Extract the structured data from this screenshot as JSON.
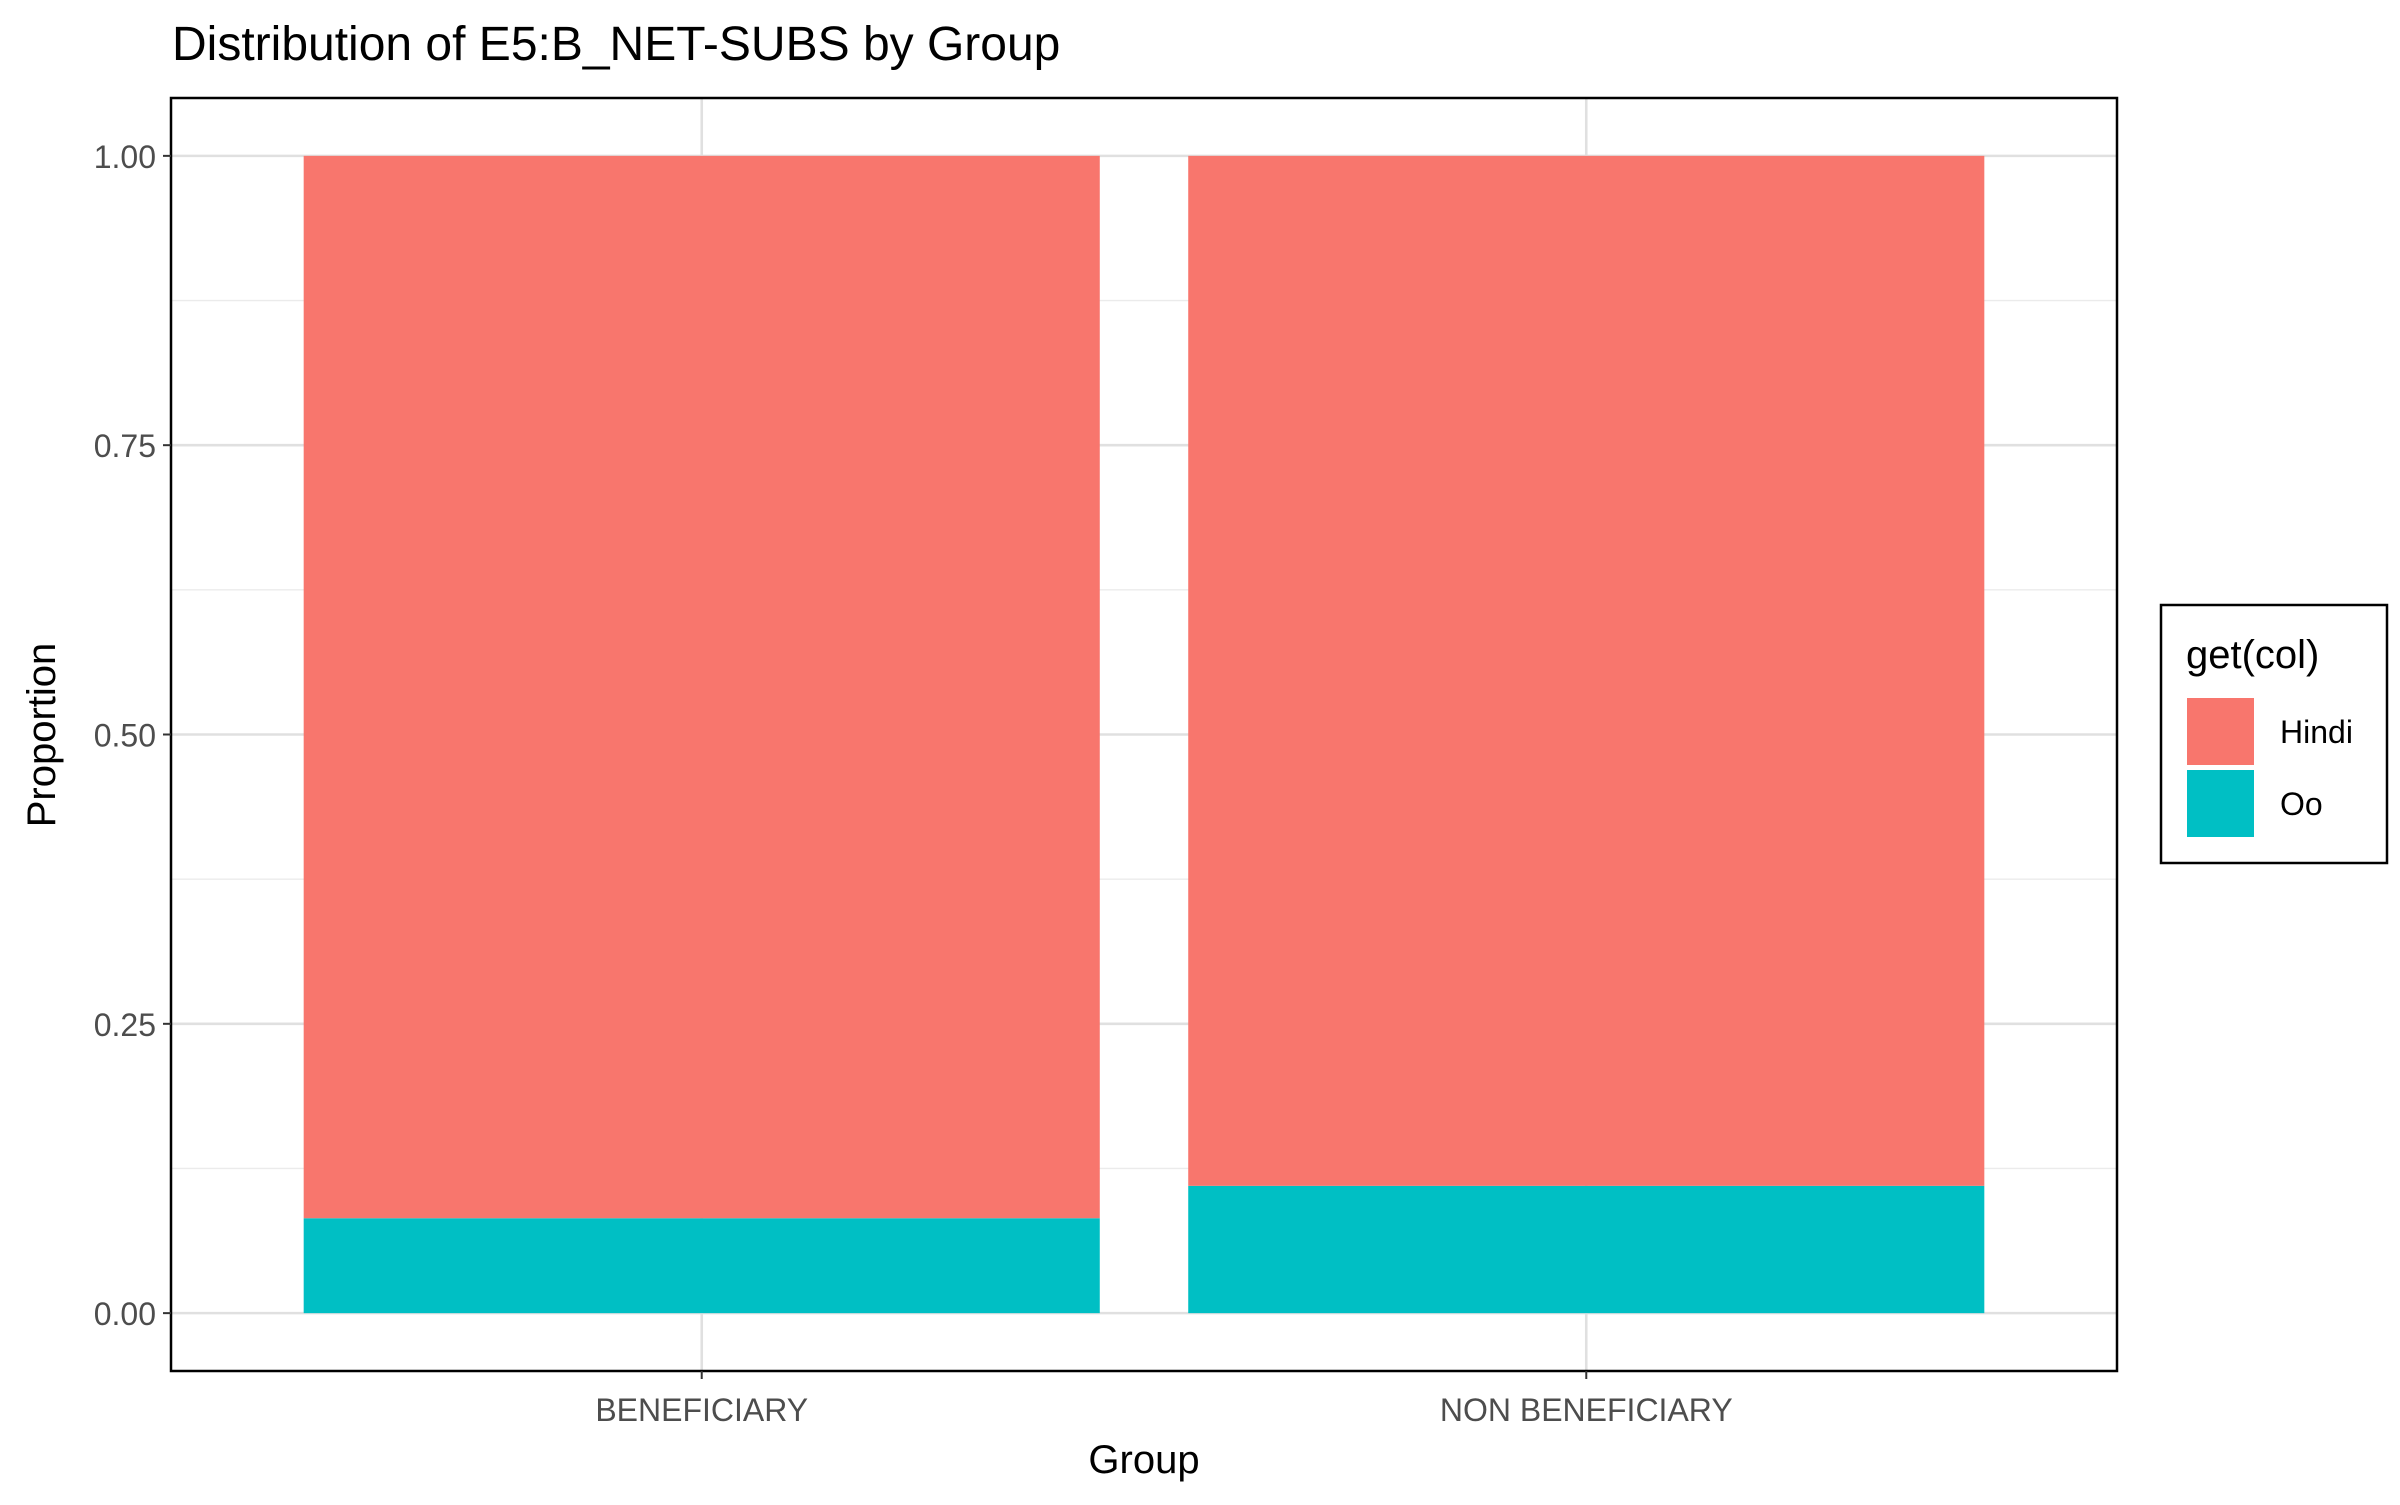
{
  "chart_data": {
    "type": "bar",
    "stacked": true,
    "title": "Distribution of E5:B_NET-SUBS by Group",
    "xlabel": "Group",
    "ylabel": "Proportion",
    "categories": [
      "BENEFICIARY",
      "NON BENEFICIARY"
    ],
    "ylim": [
      -0.05,
      1.05
    ],
    "yticks": [
      0,
      0.25,
      0.5,
      0.75,
      1
    ],
    "ytick_labels": [
      "0.00",
      "0.25",
      "0.50",
      "0.75",
      "1.00"
    ],
    "grid": true,
    "legend": {
      "title": "get(col)",
      "position": "right"
    },
    "series": [
      {
        "name": "Oo",
        "color": "#00BFC4",
        "values": [
          0.082,
          0.11
        ]
      },
      {
        "name": "Hindi",
        "color": "#F8766D",
        "values": [
          0.918,
          0.89
        ]
      }
    ]
  }
}
